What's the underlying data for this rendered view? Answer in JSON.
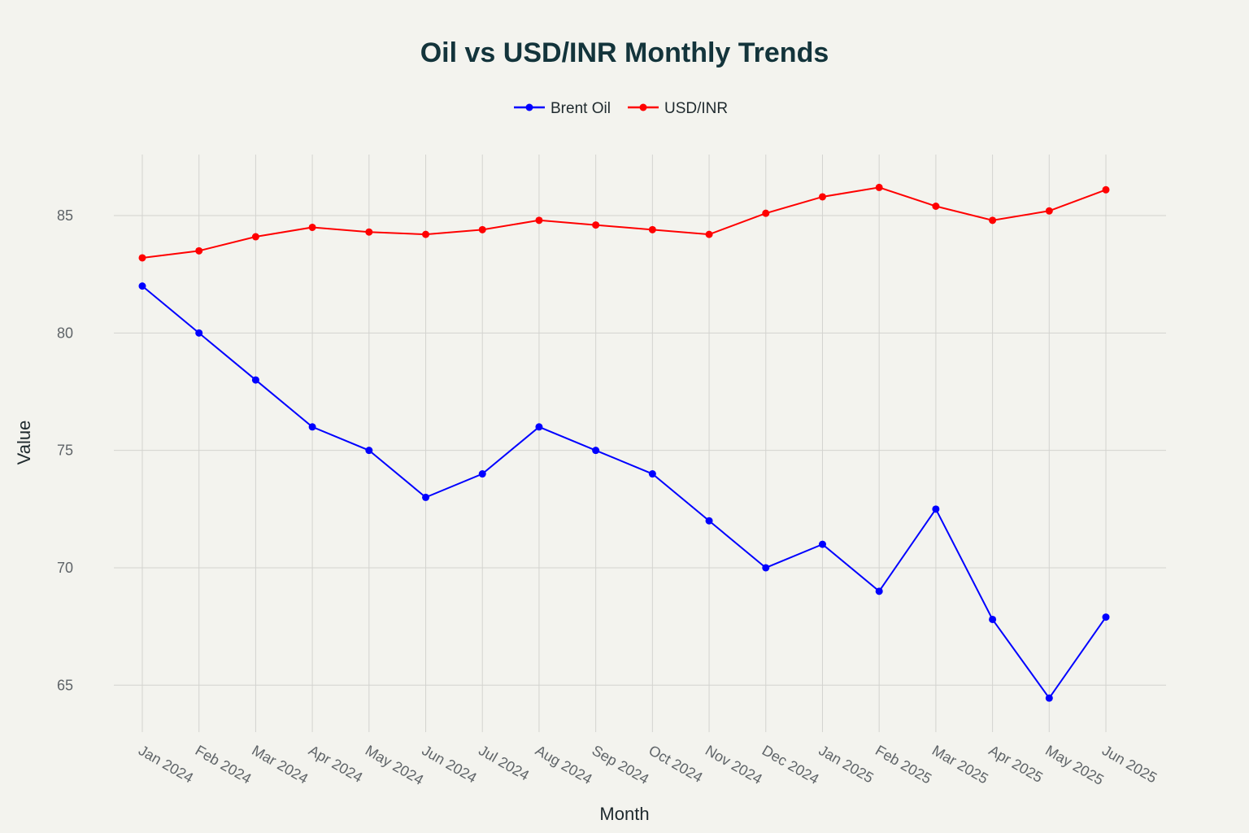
{
  "chart_data": {
    "type": "line",
    "title": "Oil vs USD/INR Monthly Trends",
    "xlabel": "Month",
    "ylabel": "Value",
    "categories": [
      "Jan 2024",
      "Feb 2024",
      "Mar 2024",
      "Apr 2024",
      "May 2024",
      "Jun 2024",
      "Jul 2024",
      "Aug 2024",
      "Sep 2024",
      "Oct 2024",
      "Nov 2024",
      "Dec 2024",
      "Jan 2025",
      "Feb 2025",
      "Mar 2025",
      "Apr 2025",
      "May 2025",
      "Jun 2025"
    ],
    "series": [
      {
        "name": "Brent Oil",
        "color": "#0000ff",
        "values": [
          82,
          80,
          78,
          76,
          75,
          73,
          74,
          76,
          75,
          74,
          72,
          70,
          71,
          69,
          72.5,
          67.8,
          64.45,
          67.9
        ]
      },
      {
        "name": "USD/INR",
        "color": "#ff0000",
        "values": [
          83.2,
          83.5,
          84.1,
          84.5,
          84.3,
          84.2,
          84.4,
          84.8,
          84.6,
          84.4,
          84.2,
          85.1,
          85.8,
          86.2,
          85.4,
          84.8,
          85.2,
          86.1
        ]
      }
    ],
    "yticks": [
      65,
      70,
      75,
      80,
      85
    ],
    "ylim": [
      63,
      87.6
    ],
    "grid": true,
    "legend_position": "top-center"
  }
}
